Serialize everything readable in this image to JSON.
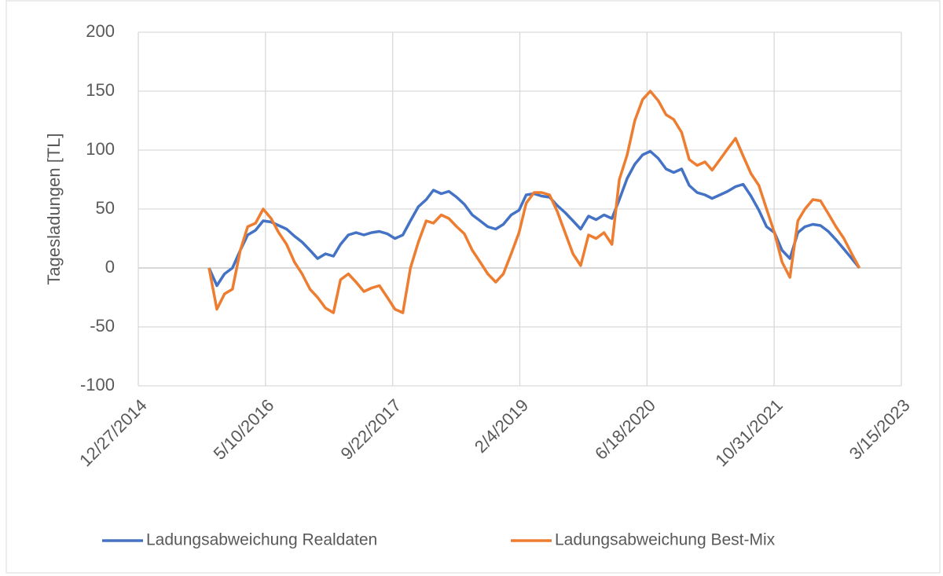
{
  "chart_data": {
    "type": "line",
    "y_label": "Tagesladungen [TL]",
    "x": [
      "10/1/2015",
      "11/1/2015",
      "12/1/2015",
      "1/1/2016",
      "2/1/2016",
      "3/1/2016",
      "4/1/2016",
      "5/1/2016",
      "6/1/2016",
      "7/1/2016",
      "8/1/2016",
      "9/1/2016",
      "10/1/2016",
      "11/1/2016",
      "12/1/2016",
      "1/1/2017",
      "2/1/2017",
      "3/1/2017",
      "4/1/2017",
      "5/1/2017",
      "6/1/2017",
      "7/1/2017",
      "8/1/2017",
      "9/1/2017",
      "10/1/2017",
      "11/1/2017",
      "12/1/2017",
      "1/1/2018",
      "2/1/2018",
      "3/1/2018",
      "4/1/2018",
      "5/1/2018",
      "6/1/2018",
      "7/1/2018",
      "8/1/2018",
      "9/1/2018",
      "10/1/2018",
      "11/1/2018",
      "12/1/2018",
      "1/1/2019",
      "2/1/2019",
      "3/1/2019",
      "4/1/2019",
      "5/1/2019",
      "6/1/2019",
      "7/1/2019",
      "8/1/2019",
      "9/1/2019",
      "10/1/2019",
      "11/1/2019",
      "12/1/2019",
      "1/1/2020",
      "2/1/2020",
      "3/1/2020",
      "4/1/2020",
      "5/1/2020",
      "6/1/2020",
      "7/1/2020",
      "8/1/2020",
      "9/1/2020",
      "10/1/2020",
      "11/1/2020",
      "12/1/2020",
      "1/1/2021",
      "2/1/2021",
      "3/1/2021",
      "4/1/2021",
      "5/1/2021",
      "6/1/2021",
      "7/1/2021",
      "8/1/2021",
      "9/1/2021",
      "10/1/2021",
      "11/1/2021",
      "12/1/2021",
      "1/1/2022",
      "2/1/2022",
      "3/1/2022",
      "4/1/2022",
      "5/1/2022",
      "6/1/2022",
      "7/1/2022",
      "8/1/2022",
      "9/1/2022",
      "10/1/2022"
    ],
    "series": [
      {
        "name": "Ladungsabweichung Realdaten",
        "color": "#4472c4",
        "values": [
          0,
          -15,
          -5,
          0,
          15,
          28,
          32,
          40,
          39,
          36,
          33,
          27,
          22,
          15,
          8,
          12,
          10,
          20,
          28,
          30,
          28,
          30,
          31,
          29,
          25,
          28,
          40,
          52,
          58,
          66,
          63,
          65,
          60,
          54,
          45,
          40,
          35,
          33,
          37,
          45,
          49,
          62,
          63,
          61,
          60,
          53,
          47,
          40,
          33,
          44,
          41,
          45,
          42,
          58,
          76,
          88,
          96,
          99,
          93,
          84,
          81,
          84,
          70,
          64,
          62,
          59,
          62,
          65,
          69,
          71,
          61,
          49,
          35,
          30,
          15,
          8,
          30,
          35,
          37,
          36,
          31,
          24,
          16,
          8,
          0
        ]
      },
      {
        "name": "Ladungsabweichung Best-Mix",
        "color": "#ed7d31",
        "values": [
          0,
          -35,
          -22,
          -18,
          15,
          35,
          38,
          50,
          42,
          30,
          20,
          5,
          -5,
          -18,
          -25,
          -34,
          -38,
          -10,
          -5,
          -12,
          -20,
          -17,
          -15,
          -25,
          -35,
          -38,
          0,
          22,
          40,
          38,
          45,
          42,
          35,
          29,
          15,
          5,
          -5,
          -12,
          -5,
          12,
          30,
          55,
          64,
          64,
          62,
          48,
          30,
          12,
          2,
          28,
          25,
          30,
          20,
          75,
          96,
          125,
          143,
          150,
          142,
          130,
          126,
          115,
          92,
          87,
          90,
          83,
          92,
          101,
          110,
          95,
          80,
          70,
          50,
          30,
          5,
          -8,
          40,
          50,
          58,
          57,
          46,
          35,
          25,
          12,
          0
        ]
      }
    ],
    "xlim": [
      "12/27/2014",
      "3/15/2023"
    ],
    "xticks": [
      "12/27/2014",
      "5/10/2016",
      "9/22/2017",
      "2/4/2019",
      "6/18/2020",
      "10/31/2021",
      "3/15/2023"
    ],
    "ylim": [
      -100,
      200
    ],
    "yticks": [
      -100,
      -50,
      0,
      50,
      100,
      150,
      200
    ],
    "grid": true,
    "legend": "bottom"
  }
}
